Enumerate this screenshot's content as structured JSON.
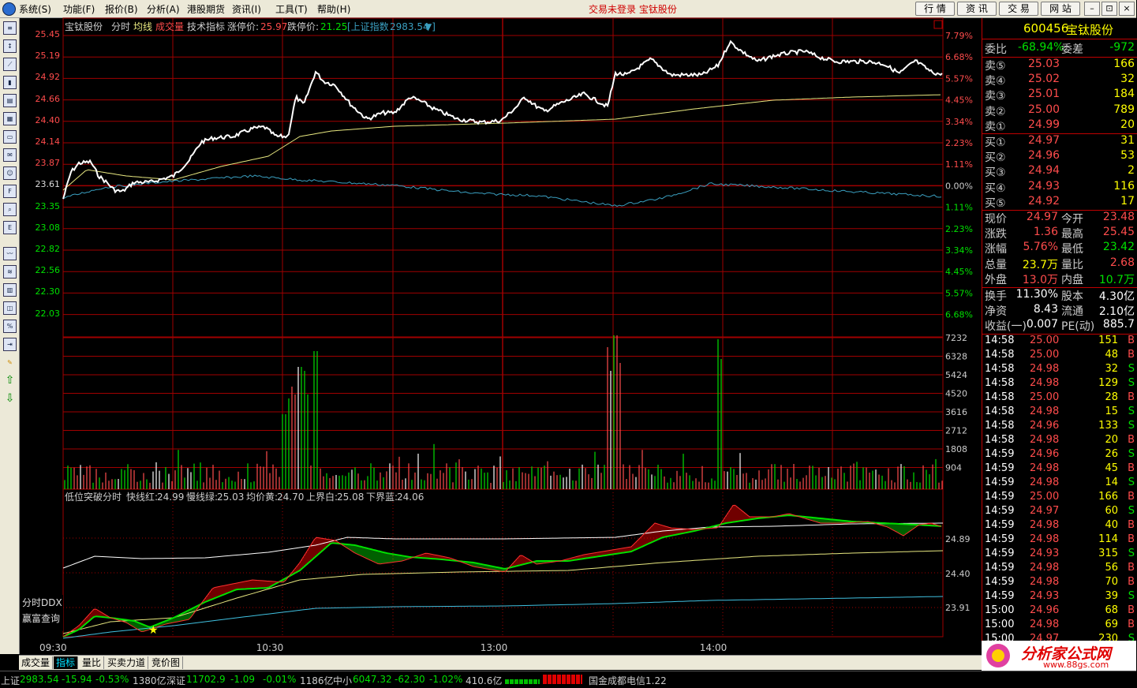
{
  "menubar": {
    "items": [
      "系统(S)",
      "功能(F)",
      "报价(B)",
      "分析(A)",
      "港股期货",
      "资讯(I)",
      "工具(T)",
      "帮助(H)"
    ],
    "status": "交易未登录  宝钛股份",
    "right_buttons": [
      "行 情",
      "资 讯",
      "交 易",
      "网 站"
    ],
    "window_buttons": [
      "–",
      "⊡",
      "×"
    ]
  },
  "chart_header": {
    "stock_name": "宝钛股份",
    "tabs": [
      "分时",
      "均线",
      "成交量",
      "技术指标"
    ],
    "limit_up_label": "涨停价:",
    "limit_up": "25.97",
    "limit_down_label": "跌停价:",
    "limit_down": "21.25",
    "index_label": "[上证指数",
    "index_value": "2983.54",
    "index_arrow": "▼]"
  },
  "price_axis": {
    "left": [
      "25.45",
      "25.19",
      "24.92",
      "24.66",
      "24.40",
      "24.14",
      "23.87",
      "23.61",
      "23.35",
      "23.08",
      "22.82",
      "22.56",
      "22.30",
      "22.03"
    ],
    "right": [
      "7.79%",
      "6.68%",
      "5.57%",
      "4.45%",
      "3.34%",
      "2.23%",
      "1.11%",
      "0.00%",
      "1.11%",
      "2.23%",
      "3.34%",
      "4.45%",
      "5.57%",
      "6.68%"
    ]
  },
  "volume_axis": [
    "7232",
    "6328",
    "5424",
    "4520",
    "3616",
    "2712",
    "1808",
    "904"
  ],
  "indicator": {
    "title": "低位突破分时",
    "fast_label": "快线红:",
    "fast_value": "24.99",
    "slow_label": "慢线绿:",
    "slow_value": "25.03",
    "avg_label": "均价黄:",
    "avg_value": "24.70",
    "upper_label": "上界白:",
    "upper_value": "25.08",
    "lower_label": "下界蓝:",
    "lower_value": "24.06",
    "axis": [
      "24.89",
      "24.40",
      "23.91"
    ]
  },
  "time_axis": [
    "09:30",
    "10:30",
    "13:00",
    "14:00"
  ],
  "sidelinks": [
    "分时DDX",
    "赢富查询"
  ],
  "bottom_tabs": [
    "成交量",
    "指标",
    "量比",
    "买卖力道",
    "竞价图"
  ],
  "quote": {
    "code": "600456",
    "name": "宝钛股份",
    "weibi_label": "委比",
    "weibi": "-68.94%",
    "weicha_label": "委差",
    "weicha": "-972",
    "sells": [
      {
        "label": "卖⑤",
        "price": "25.03",
        "vol": "166"
      },
      {
        "label": "卖④",
        "price": "25.02",
        "vol": "32"
      },
      {
        "label": "卖③",
        "price": "25.01",
        "vol": "184"
      },
      {
        "label": "卖②",
        "price": "25.00",
        "vol": "789"
      },
      {
        "label": "卖①",
        "price": "24.99",
        "vol": "20"
      }
    ],
    "buys": [
      {
        "label": "买①",
        "price": "24.97",
        "vol": "31"
      },
      {
        "label": "买②",
        "price": "24.96",
        "vol": "53"
      },
      {
        "label": "买③",
        "price": "24.94",
        "vol": "2"
      },
      {
        "label": "买④",
        "price": "24.93",
        "vol": "116"
      },
      {
        "label": "买⑤",
        "price": "24.92",
        "vol": "17"
      }
    ],
    "stats": [
      {
        "l1": "现价",
        "v1": "24.97",
        "c1": "red",
        "l2": "今开",
        "v2": "23.48",
        "c2": "red"
      },
      {
        "l1": "涨跌",
        "v1": "1.36",
        "c1": "red",
        "l2": "最高",
        "v2": "25.45",
        "c2": "red"
      },
      {
        "l1": "涨幅",
        "v1": "5.76%",
        "c1": "red",
        "l2": "最低",
        "v2": "23.42",
        "c2": "green"
      },
      {
        "l1": "总量",
        "v1": "23.7万",
        "c1": "yellow",
        "l2": "量比",
        "v2": "2.68",
        "c2": "red"
      },
      {
        "l1": "外盘",
        "v1": "13.0万",
        "c1": "red",
        "l2": "内盘",
        "v2": "10.7万",
        "c2": "green"
      }
    ],
    "stats2": [
      {
        "l1": "换手",
        "v1": "11.30%",
        "l2": "股本",
        "v2": "4.30亿"
      },
      {
        "l1": "净资",
        "v1": "8.43",
        "l2": "流通",
        "v2": "2.10亿"
      },
      {
        "l1": "收益(一)",
        "v1": "0.007",
        "l2": "PE(动)",
        "v2": "885.7"
      }
    ],
    "ticks": [
      {
        "t": "14:58",
        "p": "25.00",
        "v": "151",
        "s": "B"
      },
      {
        "t": "14:58",
        "p": "25.00",
        "v": "48",
        "s": "B"
      },
      {
        "t": "14:58",
        "p": "24.98",
        "v": "32",
        "s": "S"
      },
      {
        "t": "14:58",
        "p": "24.98",
        "v": "129",
        "s": "S"
      },
      {
        "t": "14:58",
        "p": "25.00",
        "v": "28",
        "s": "B"
      },
      {
        "t": "14:58",
        "p": "24.98",
        "v": "15",
        "s": "S"
      },
      {
        "t": "14:58",
        "p": "24.96",
        "v": "133",
        "s": "S"
      },
      {
        "t": "14:58",
        "p": "24.98",
        "v": "20",
        "s": "B"
      },
      {
        "t": "14:59",
        "p": "24.96",
        "v": "26",
        "s": "S"
      },
      {
        "t": "14:59",
        "p": "24.98",
        "v": "45",
        "s": "B"
      },
      {
        "t": "14:59",
        "p": "24.98",
        "v": "14",
        "s": "S"
      },
      {
        "t": "14:59",
        "p": "25.00",
        "v": "166",
        "s": "B"
      },
      {
        "t": "14:59",
        "p": "24.97",
        "v": "60",
        "s": "S"
      },
      {
        "t": "14:59",
        "p": "24.98",
        "v": "40",
        "s": "B"
      },
      {
        "t": "14:59",
        "p": "24.98",
        "v": "114",
        "s": "B"
      },
      {
        "t": "14:59",
        "p": "24.93",
        "v": "315",
        "s": "S"
      },
      {
        "t": "14:59",
        "p": "24.98",
        "v": "56",
        "s": "B"
      },
      {
        "t": "14:59",
        "p": "24.98",
        "v": "70",
        "s": "B"
      },
      {
        "t": "14:59",
        "p": "24.93",
        "v": "39",
        "s": "S"
      },
      {
        "t": "15:00",
        "p": "24.96",
        "v": "68",
        "s": "B"
      },
      {
        "t": "15:00",
        "p": "24.98",
        "v": "69",
        "s": "B"
      },
      {
        "t": "15:00",
        "p": "24.97",
        "v": "230",
        "s": "S"
      }
    ]
  },
  "statusbar": {
    "sh_label": "上证",
    "sh_value": "2983.54",
    "sh_change": "-15.94",
    "sh_pct": "-0.53%",
    "sh_amount": "1380亿",
    "sz_label": "深证",
    "sz_value": "11702.9",
    "sz_change": "-1.09",
    "sz_pct": "-0.01%",
    "sz_amount": "1186亿",
    "zx_label": "中小",
    "zx_value": "6047.32",
    "zx_change": "-62.30",
    "zx_pct": "-1.02%",
    "zx_amount": "410.6亿",
    "news": "国金成都电信1.22"
  },
  "watermark": {
    "title": "分析家公式网",
    "url": "www.88gs.com"
  },
  "colors": {
    "grid": "#a00000",
    "price_line": "#ffffff",
    "avg_line": "#e8e880",
    "index_line": "#3a9fc0",
    "up": "#ff4c4c",
    "down": "#00e000"
  }
}
